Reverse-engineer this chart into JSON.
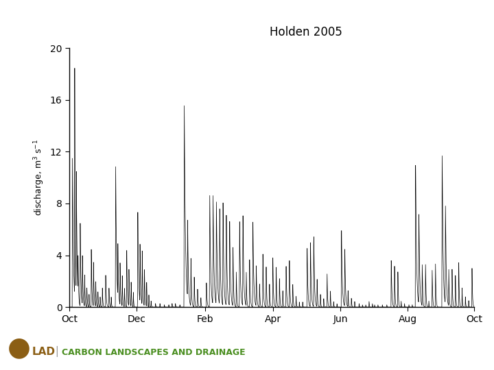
{
  "title": "Holden 2005",
  "xlabel_ticks": [
    "Oct",
    "Dec",
    "Feb",
    "Apr",
    "Jun",
    "Aug",
    "Oct"
  ],
  "ylim": [
    0,
    20
  ],
  "yticks": [
    0,
    4,
    8,
    12,
    16,
    20
  ],
  "background_color": "#ffffff",
  "line_color": "#000000",
  "title_fontsize": 12,
  "ylabel_fontsize": 9,
  "tick_fontsize": 10,
  "clad_color_brown": "#8B5E14",
  "clad_color_green": "#4a8e20"
}
